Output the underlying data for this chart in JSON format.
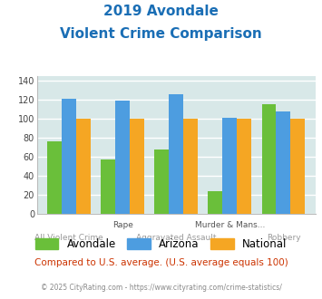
{
  "title_line1": "2019 Avondale",
  "title_line2": "Violent Crime Comparison",
  "groups": [
    {
      "label": "Avondale",
      "color": "#6abf3a",
      "values": [
        76,
        57,
        68,
        24,
        116
      ]
    },
    {
      "label": "Arizona",
      "color": "#4d9de0",
      "values": [
        121,
        119,
        126,
        101,
        108
      ]
    },
    {
      "label": "National",
      "color": "#f5a623",
      "values": [
        100,
        100,
        100,
        100,
        100
      ]
    }
  ],
  "x_positions": [
    0,
    1,
    2,
    3,
    4
  ],
  "x_labels_top": [
    "",
    "Rape",
    "",
    "Murder & Mans...",
    ""
  ],
  "x_labels_bot": [
    "All Violent Crime",
    "",
    "Aggravated Assault",
    "",
    "Robbery"
  ],
  "ylim": [
    0,
    145
  ],
  "yticks": [
    0,
    20,
    40,
    60,
    80,
    100,
    120,
    140
  ],
  "bar_width": 0.27,
  "plot_bg_color": "#d8e8e8",
  "fig_bg_color": "#ffffff",
  "title_color": "#1a6eb5",
  "footer_text": "Compared to U.S. average. (U.S. average equals 100)",
  "footer_color": "#cc3300",
  "copyright_text": "© 2025 CityRating.com - https://www.cityrating.com/crime-statistics/",
  "copyright_color": "#888888",
  "grid_color": "#ffffff"
}
